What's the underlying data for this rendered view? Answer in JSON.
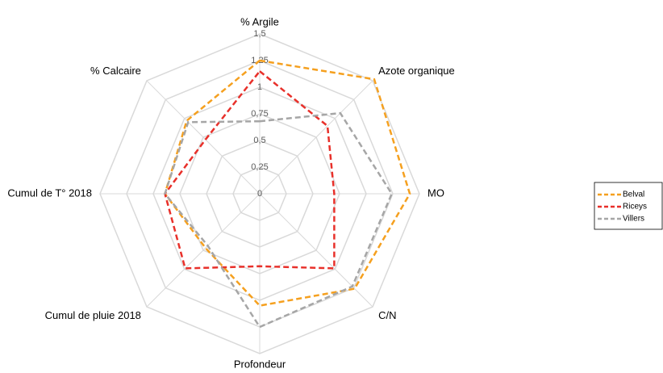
{
  "chart_data": {
    "type": "radar",
    "categories": [
      "% Argile",
      "Azote organique",
      "MO",
      "C/N",
      "Profondeur",
      "Cumul de pluie 2018",
      "Cumul de T° 2018",
      "% Calcaire"
    ],
    "ylim": [
      0,
      1.5
    ],
    "yticks": [
      0,
      {
        "value": 0.25,
        "label": "0,25"
      },
      {
        "value": 0.5,
        "label": "0,5"
      },
      {
        "value": 0.75,
        "label": "0,75"
      },
      1,
      {
        "value": 1.25,
        "label": "1,25"
      },
      {
        "value": 1.5,
        "label": "1,5"
      }
    ],
    "grid": true,
    "legend": "right",
    "series": [
      {
        "name": "Belval",
        "color": "#f5a01f",
        "values": [
          1.25,
          1.52,
          1.41,
          1.26,
          1.05,
          0.72,
          0.89,
          0.97
        ]
      },
      {
        "name": "Riceys",
        "color": "#e8302a",
        "values": [
          1.15,
          0.9,
          0.7,
          0.99,
          0.68,
          0.99,
          0.89,
          0.72
        ]
      },
      {
        "name": "Villers",
        "color": "#a6a6a6",
        "values": [
          0.68,
          1.07,
          1.24,
          1.23,
          1.25,
          0.69,
          0.89,
          0.95
        ]
      }
    ]
  }
}
